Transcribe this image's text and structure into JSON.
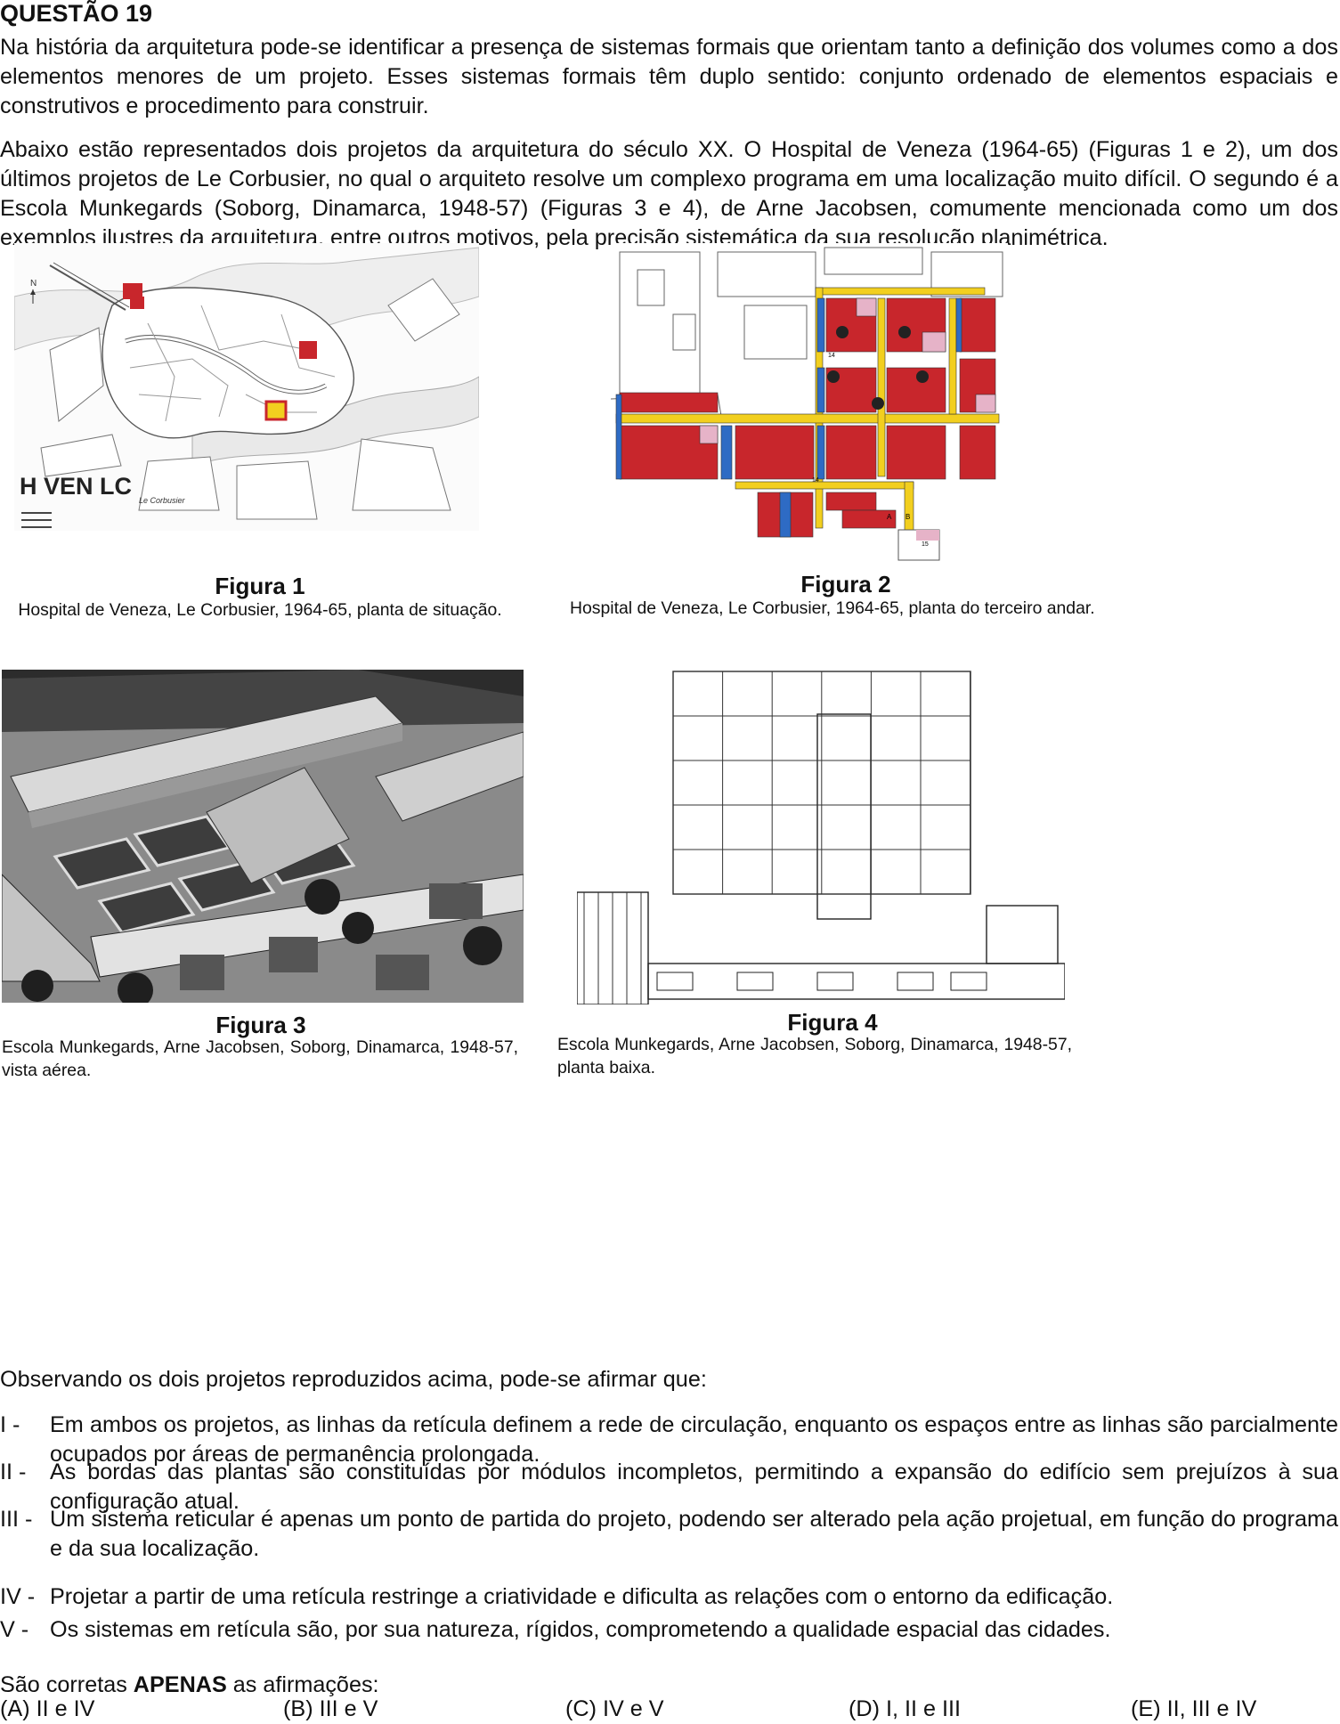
{
  "question": {
    "title": "QUESTÃO 19",
    "para1": "Na história da arquitetura pode-se identificar a presença de sistemas formais que orientam tanto a definição dos volumes como a dos elementos menores de um projeto. Esses sistemas formais têm duplo sentido: conjunto ordenado de elementos espaciais e construtivos e procedimento para construir.",
    "para2": "Abaixo estão representados dois projetos da arquitetura do século XX. O Hospital de Veneza (1964-65) (Figuras 1 e 2), um dos últimos projetos de Le Corbusier, no qual o arquiteto resolve um complexo programa em uma localização muito difícil. O segundo é a Escola Munkegards (Soborg, Dinamarca, 1948-57) (Figuras 3 e 4), de Arne Jacobsen, comumente mencionada como um dos exemplos ilustres da arquitetura, entre outros motivos, pela precisão sistemática da sua resolução planimétrica."
  },
  "figures": {
    "fig1": {
      "title": "Figura 1",
      "caption": "Hospital de Veneza, Le Corbusier, 1964-65, planta de situação.",
      "map_label": "H VEN LC",
      "north": "N",
      "signature": "Le Corbusier"
    },
    "fig2": {
      "title": "Figura 2",
      "caption": "Hospital de Veneza, Le Corbusier, 1964-65, planta do terceiro andar.",
      "labels": [
        "14",
        "14",
        "A",
        "B",
        "15"
      ]
    },
    "fig3": {
      "title": "Figura 3",
      "caption": "Escola Munkegards, Arne Jacobsen, Soborg, Dinamarca, 1948-57, vista aérea."
    },
    "fig4": {
      "title": "Figura 4",
      "caption": "Escola Munkegards, Arne Jacobsen, Soborg, Dinamarca, 1948-57, planta baixa."
    },
    "colors": {
      "red": "#c8262c",
      "blue": "#2e6bc4",
      "yellow": "#f2cf1f",
      "pink": "#e6b3c8"
    }
  },
  "statements": {
    "stem": "Observando os dois projetos reproduzidos acima, pode-se afirmar que:",
    "items": [
      {
        "num": "I  -",
        "text": "Em ambos os projetos, as linhas da retícula definem a rede de circulação, enquanto os espaços entre as linhas são parcialmente ocupados por áreas de permanência prolongada."
      },
      {
        "num": "II  -",
        "text": "As bordas das plantas são constituídas por módulos incompletos, permitindo a expansão do edifício sem prejuízos à sua configuração atual."
      },
      {
        "num": "III -",
        "text": "Um sistema reticular é apenas um ponto de partida do projeto, podendo ser alterado pela ação projetual, em função do programa e da sua localização."
      },
      {
        "num": "IV -",
        "text": "Projetar a partir de uma retícula restringe a criatividade e dificulta as relações com o entorno da edificação."
      },
      {
        "num": "V  -",
        "text": "Os sistemas em retícula são, por sua natureza, rígidos, comprometendo a qualidade espacial das cidades."
      }
    ]
  },
  "answer": {
    "prefix": "São corretas ",
    "emphasis": "APENAS",
    "suffix": " as afirmações:",
    "options": [
      "(A)  II e IV",
      "(B)  III e V",
      "(C)  IV e V",
      "(D)  I, II e III",
      "(E)  II, III e IV"
    ]
  }
}
